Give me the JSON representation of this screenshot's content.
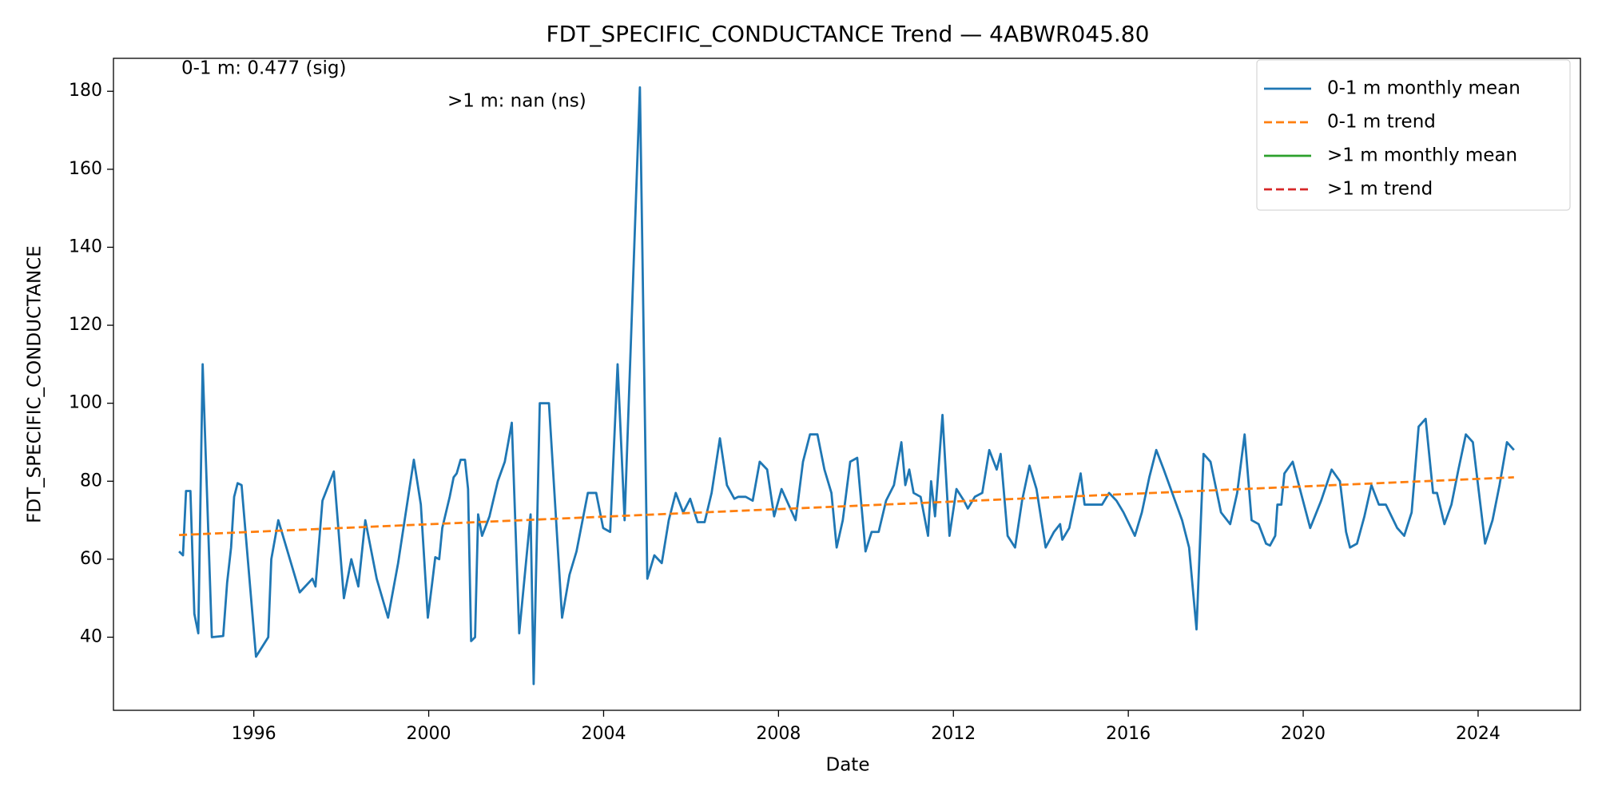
{
  "chart_data": {
    "type": "line",
    "title": "FDT_SPECIFIC_CONDUCTANCE Trend — 4ABWR045.80",
    "x_label": "Date",
    "y_label": "FDT_SPECIFIC_CONDUCTANCE",
    "annotations": [
      "0-1 m: 0.477 (sig)",
      ">1 m: nan (ns)"
    ],
    "xlim": [
      1992.79,
      2026.34
    ],
    "xticks": [
      1996,
      2000,
      2004,
      2008,
      2012,
      2016,
      2020,
      2024
    ],
    "ylim": [
      21.25,
      188.45
    ],
    "yticks": [
      40,
      60,
      80,
      100,
      120,
      140,
      160,
      180
    ],
    "grid": false,
    "legend": "upper right",
    "series": [
      {
        "name": "0-1 m monthly mean",
        "color": "#1f77b4",
        "dash": false,
        "x": [
          1994.29,
          1994.38,
          1994.45,
          1994.55,
          1994.64,
          1994.73,
          1994.83,
          1995.04,
          1995.3,
          1995.39,
          1995.48,
          1995.55,
          1995.63,
          1995.72,
          1996.05,
          1996.33,
          1996.4,
          1996.56,
          1997.05,
          1997.34,
          1997.41,
          1997.57,
          1997.83,
          1998.06,
          1998.23,
          1998.39,
          1998.55,
          1998.81,
          1999.07,
          1999.3,
          1999.49,
          1999.66,
          1999.82,
          1999.98,
          2000.08,
          2000.15,
          2000.24,
          2000.31,
          2000.48,
          2000.57,
          2000.64,
          2000.73,
          2000.83,
          2000.9,
          2000.97,
          2001.06,
          2001.13,
          2001.22,
          2001.39,
          2001.58,
          2001.74,
          2001.9,
          2002.07,
          2002.33,
          2002.4,
          2002.54,
          2002.75,
          2003.05,
          2003.22,
          2003.38,
          2003.64,
          2003.83,
          2003.99,
          2004.15,
          2004.32,
          2004.48,
          2004.83,
          2005.0,
          2005.16,
          2005.33,
          2005.49,
          2005.65,
          2005.82,
          2005.98,
          2006.15,
          2006.31,
          2006.47,
          2006.66,
          2006.82,
          2006.99,
          2007.08,
          2007.25,
          2007.41,
          2007.57,
          2007.74,
          2007.9,
          2008.07,
          2008.39,
          2008.56,
          2008.72,
          2008.89,
          2009.05,
          2009.21,
          2009.33,
          2009.47,
          2009.64,
          2009.8,
          2009.99,
          2010.13,
          2010.29,
          2010.46,
          2010.64,
          2010.81,
          2010.9,
          2010.99,
          2011.09,
          2011.25,
          2011.42,
          2011.49,
          2011.58,
          2011.75,
          2011.91,
          2012.07,
          2012.24,
          2012.33,
          2012.49,
          2012.66,
          2012.82,
          2012.99,
          2013.08,
          2013.24,
          2013.41,
          2013.57,
          2013.74,
          2013.9,
          2014.11,
          2014.3,
          2014.44,
          2014.49,
          2014.65,
          2014.91,
          2015.0,
          2015.17,
          2015.4,
          2015.56,
          2015.73,
          2015.89,
          2016.15,
          2016.31,
          2016.48,
          2016.64,
          2016.81,
          2017.23,
          2017.39,
          2017.56,
          2017.72,
          2017.88,
          2018.12,
          2018.33,
          2018.49,
          2018.66,
          2018.82,
          2018.98,
          2019.15,
          2019.24,
          2019.36,
          2019.41,
          2019.5,
          2019.57,
          2019.76,
          2020.16,
          2020.41,
          2020.65,
          2020.84,
          2020.98,
          2021.07,
          2021.23,
          2021.4,
          2021.56,
          2021.73,
          2021.89,
          2022.15,
          2022.31,
          2022.48,
          2022.64,
          2022.8,
          2022.97,
          2023.06,
          2023.23,
          2023.39,
          2023.55,
          2023.72,
          2023.88,
          2024.16,
          2024.33,
          2024.49,
          2024.66,
          2024.82
        ],
        "values": [
          62,
          61,
          77.5,
          77.5,
          46,
          41,
          110,
          40,
          40.3,
          54,
          63,
          76,
          79.5,
          79,
          35,
          40,
          60,
          70,
          51.5,
          55,
          53,
          75,
          82.5,
          50,
          60,
          53,
          70,
          55,
          45,
          59,
          73,
          85.5,
          74,
          45,
          54,
          60.5,
          60,
          68,
          76,
          81,
          82,
          85.5,
          85.5,
          78,
          39,
          40,
          71.5,
          66,
          71,
          80,
          85,
          95,
          41,
          71.5,
          28,
          100,
          100,
          45,
          56,
          62,
          77,
          77,
          68,
          67,
          110,
          70,
          181,
          55,
          61,
          59,
          70,
          77,
          72,
          75.5,
          69.5,
          69.5,
          77,
          91,
          79,
          75.5,
          76,
          76,
          75,
          85,
          83,
          71,
          78,
          70,
          85,
          92,
          92,
          83,
          77,
          63,
          70,
          85,
          86,
          62,
          67,
          67,
          75,
          79,
          90,
          79,
          83,
          77,
          76,
          66,
          80,
          71,
          97,
          66,
          78,
          75,
          73,
          76,
          77,
          88,
          83,
          87,
          66,
          63,
          75,
          84,
          78,
          63,
          67,
          69,
          65,
          68,
          82,
          74,
          74,
          74,
          77,
          75,
          72,
          66,
          72,
          81,
          88,
          83,
          70,
          63,
          42,
          87,
          85,
          72,
          69,
          77,
          92,
          70,
          69,
          64,
          63.5,
          66,
          74,
          74,
          82,
          85,
          68,
          75,
          83,
          80,
          67,
          63,
          64,
          71,
          79,
          74,
          74,
          68,
          66,
          72,
          94,
          96,
          77,
          77,
          69,
          74,
          83,
          92,
          90,
          64,
          70,
          79,
          90,
          88
        ]
      },
      {
        "name": "0-1 m trend",
        "color": "#ff7f0e",
        "dash": true,
        "x": [
          1994.29,
          2024.82
        ],
        "values": [
          66.2,
          81
        ]
      },
      {
        "name": ">1 m monthly mean",
        "color": "#2ca02c",
        "dash": false,
        "x": [],
        "values": []
      },
      {
        "name": ">1 m trend",
        "color": "#d62728",
        "dash": true,
        "x": [],
        "values": []
      }
    ]
  }
}
